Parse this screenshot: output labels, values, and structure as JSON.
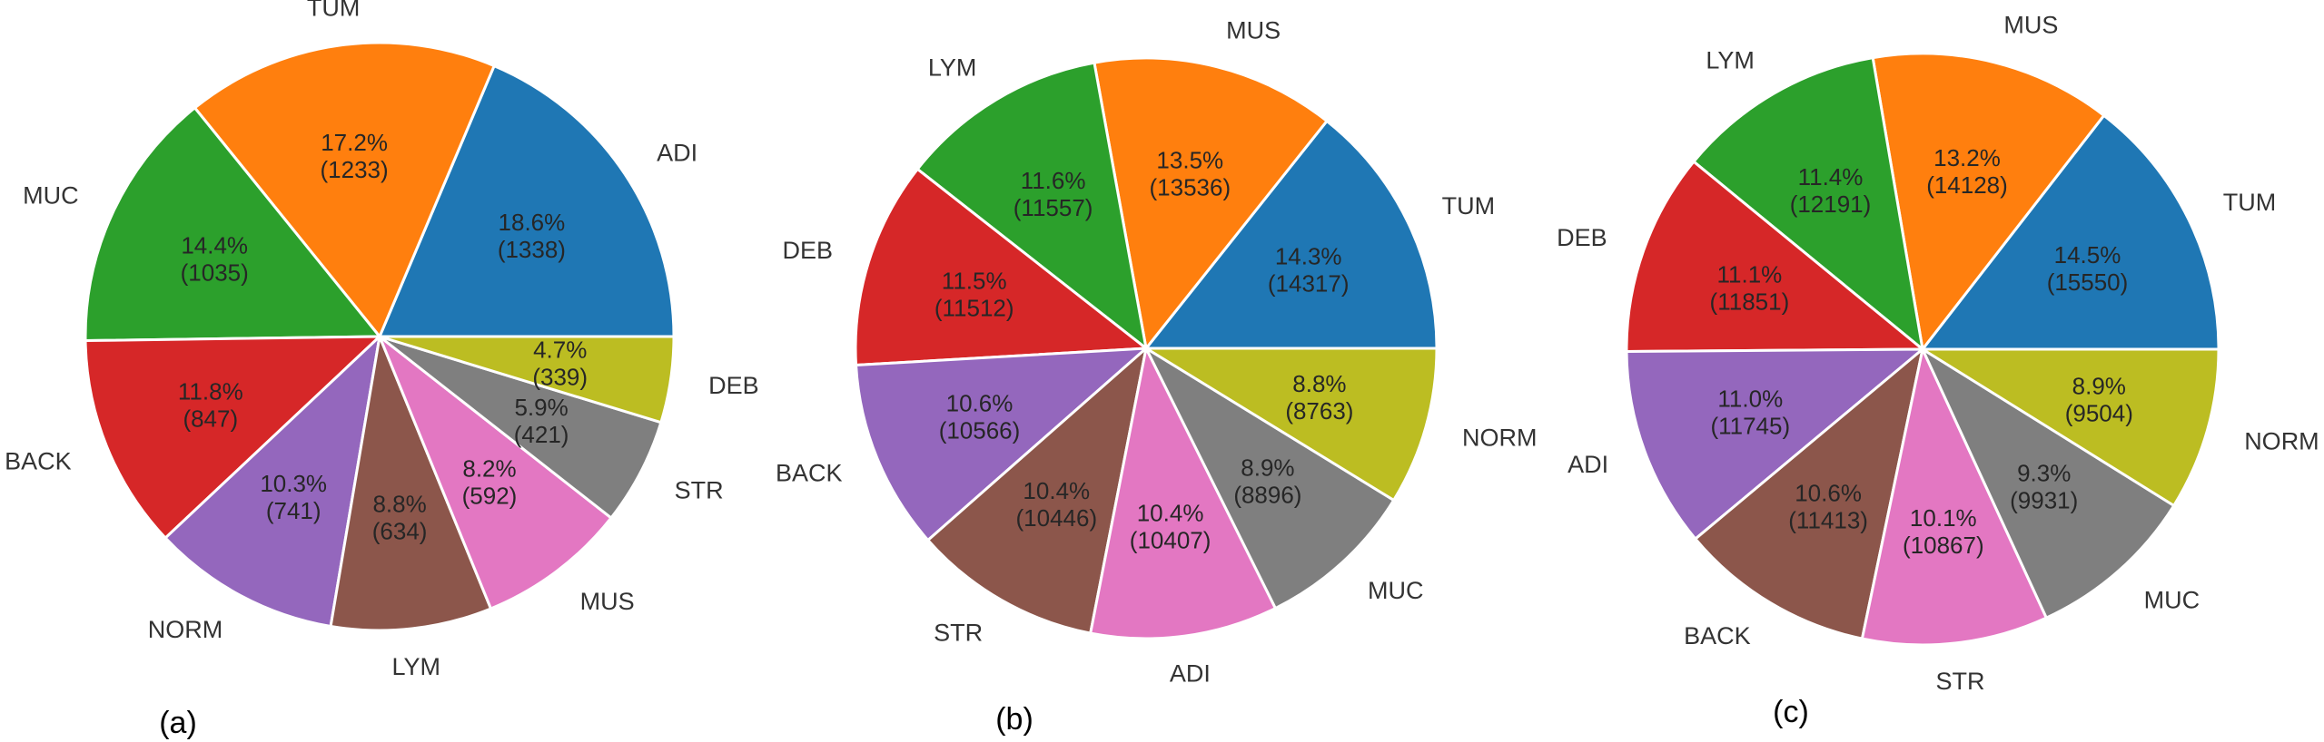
{
  "chart_data": [
    {
      "type": "pie",
      "panel_label": "(a)",
      "start_angle": 0,
      "direction": "counterclockwise",
      "slices": [
        {
          "label": "ADI",
          "percent": "18.6%",
          "count": "(1338)",
          "value": 1338,
          "color": "#1f77b4"
        },
        {
          "label": "TUM",
          "percent": "17.2%",
          "count": "(1233)",
          "value": 1233,
          "color": "#ff7f0e"
        },
        {
          "label": "MUC",
          "percent": "14.4%",
          "count": "(1035)",
          "value": 1035,
          "color": "#2ca02c"
        },
        {
          "label": "BACK",
          "percent": "11.8%",
          "count": "(847)",
          "value": 847,
          "color": "#d62728"
        },
        {
          "label": "NORM",
          "percent": "10.3%",
          "count": "(741)",
          "value": 741,
          "color": "#9467bd"
        },
        {
          "label": "LYM",
          "percent": "8.8%",
          "count": "(634)",
          "value": 634,
          "color": "#8c564b"
        },
        {
          "label": "MUS",
          "percent": "8.2%",
          "count": "(592)",
          "value": 592,
          "color": "#e377c2"
        },
        {
          "label": "STR",
          "percent": "5.9%",
          "count": "(421)",
          "value": 421,
          "color": "#7f7f7f"
        },
        {
          "label": "DEB",
          "percent": "4.7%",
          "count": "(339)",
          "value": 339,
          "color": "#bcbd22"
        }
      ]
    },
    {
      "type": "pie",
      "panel_label": "(b)",
      "start_angle": 0,
      "direction": "counterclockwise",
      "slices": [
        {
          "label": "TUM",
          "percent": "14.3%",
          "count": "(14317)",
          "value": 14317,
          "color": "#1f77b4"
        },
        {
          "label": "MUS",
          "percent": "13.5%",
          "count": "(13536)",
          "value": 13536,
          "color": "#ff7f0e"
        },
        {
          "label": "LYM",
          "percent": "11.6%",
          "count": "(11557)",
          "value": 11557,
          "color": "#2ca02c"
        },
        {
          "label": "DEB",
          "percent": "11.5%",
          "count": "(11512)",
          "value": 11512,
          "color": "#d62728"
        },
        {
          "label": "BACK",
          "percent": "10.6%",
          "count": "(10566)",
          "value": 10566,
          "color": "#9467bd"
        },
        {
          "label": "STR",
          "percent": "10.4%",
          "count": "(10446)",
          "value": 10446,
          "color": "#8c564b"
        },
        {
          "label": "ADI",
          "percent": "10.4%",
          "count": "(10407)",
          "value": 10407,
          "color": "#e377c2"
        },
        {
          "label": "MUC",
          "percent": "8.9%",
          "count": "(8896)",
          "value": 8896,
          "color": "#7f7f7f"
        },
        {
          "label": "NORM",
          "percent": "8.8%",
          "count": "(8763)",
          "value": 8763,
          "color": "#bcbd22"
        }
      ]
    },
    {
      "type": "pie",
      "panel_label": "(c)",
      "start_angle": 0,
      "direction": "counterclockwise",
      "slices": [
        {
          "label": "TUM",
          "percent": "14.5%",
          "count": "(15550)",
          "value": 15550,
          "color": "#1f77b4"
        },
        {
          "label": "MUS",
          "percent": "13.2%",
          "count": "(14128)",
          "value": 14128,
          "color": "#ff7f0e"
        },
        {
          "label": "LYM",
          "percent": "11.4%",
          "count": "(12191)",
          "value": 12191,
          "color": "#2ca02c"
        },
        {
          "label": "DEB",
          "percent": "11.1%",
          "count": "(11851)",
          "value": 11851,
          "color": "#d62728"
        },
        {
          "label": "ADI",
          "percent": "11.0%",
          "count": "(11745)",
          "value": 11745,
          "color": "#9467bd"
        },
        {
          "label": "BACK",
          "percent": "10.6%",
          "count": "(11413)",
          "value": 11413,
          "color": "#8c564b"
        },
        {
          "label": "STR",
          "percent": "10.1%",
          "count": "(10867)",
          "value": 10867,
          "color": "#e377c2"
        },
        {
          "label": "MUC",
          "percent": "9.3%",
          "count": "(9931)",
          "value": 9931,
          "color": "#7f7f7f"
        },
        {
          "label": "NORM",
          "percent": "8.9%",
          "count": "(9504)",
          "value": 9504,
          "color": "#bcbd22"
        }
      ]
    }
  ]
}
